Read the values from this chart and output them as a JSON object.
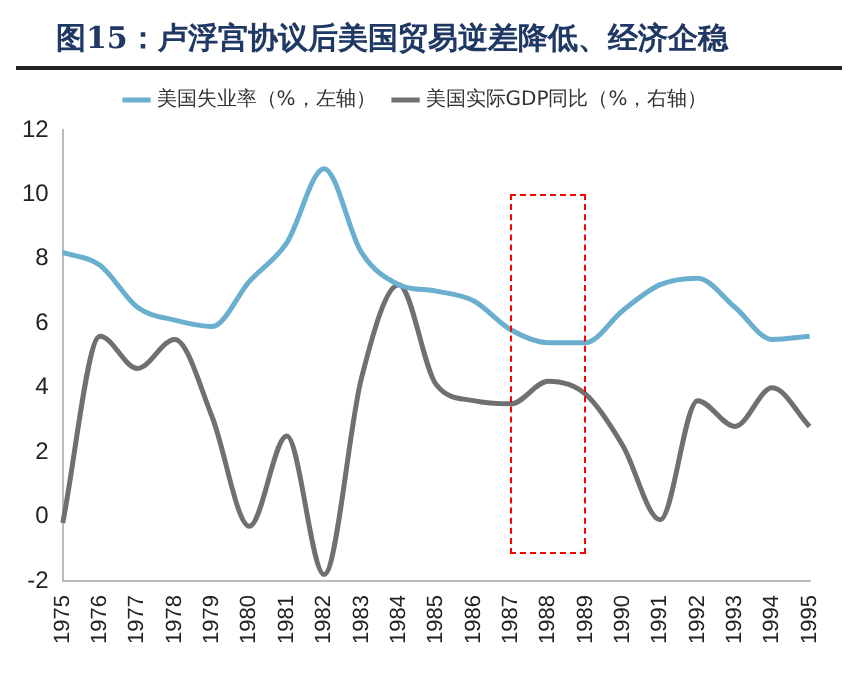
{
  "chart_data": {
    "type": "line",
    "title": "图15：卢浮宫协议后美国贸易逆差降低、经济企稳",
    "categories": [
      "1975",
      "1976",
      "1977",
      "1978",
      "1979",
      "1980",
      "1981",
      "1982",
      "1983",
      "1984",
      "1985",
      "1986",
      "1987",
      "1988",
      "1989",
      "1990",
      "1991",
      "1992",
      "1993",
      "1994",
      "1995"
    ],
    "series": [
      {
        "name": "美国失业率（%，左轴）",
        "color": "#6aaed0",
        "values": [
          8.2,
          7.8,
          6.5,
          6.1,
          5.9,
          7.3,
          8.5,
          10.8,
          8.2,
          7.2,
          7.0,
          6.7,
          5.8,
          5.4,
          5.4,
          6.4,
          7.2,
          7.4,
          6.5,
          5.5,
          5.6
        ]
      },
      {
        "name": "美国实际GDP同比（%，右轴）",
        "color": "#707070",
        "values": [
          -0.2,
          5.6,
          4.6,
          5.5,
          3.1,
          -0.3,
          2.5,
          -1.8,
          4.3,
          7.2,
          4.1,
          3.6,
          3.5,
          4.2,
          3.8,
          2.2,
          -0.1,
          3.6,
          2.8,
          4.0,
          2.8
        ]
      }
    ],
    "ylim": [
      -2,
      12
    ],
    "yticks": [
      -2,
      0,
      2,
      4,
      6,
      8,
      10,
      12
    ],
    "grid": false,
    "legend": "top",
    "line_style": "solid",
    "marker": "none"
  }
}
